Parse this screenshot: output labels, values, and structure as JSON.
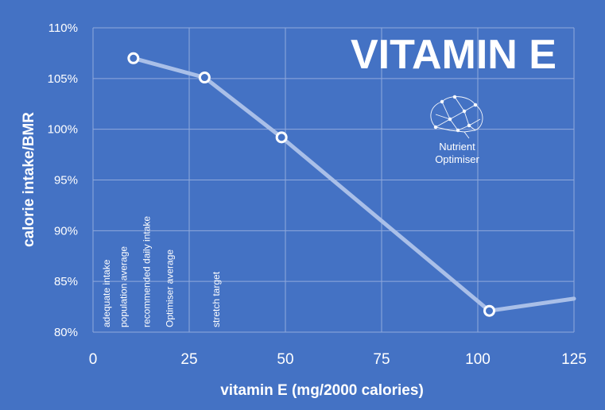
{
  "chart_data": {
    "type": "line",
    "title": "VITAMIN E",
    "xlabel": "vitamin E (mg/2000 calories)",
    "ylabel": "calorie intake/BMR",
    "xlim": [
      0,
      125
    ],
    "ylim": [
      80,
      110
    ],
    "x_ticks": [
      0,
      25,
      50,
      75,
      100,
      125
    ],
    "y_ticks": [
      80,
      85,
      90,
      95,
      100,
      105,
      110
    ],
    "y_tick_labels": [
      "80%",
      "85%",
      "90%",
      "95%",
      "100%",
      "105%",
      "110%"
    ],
    "grid": true,
    "series": [
      {
        "name": "calorie intake/BMR",
        "color": "#a9bfe8",
        "x": [
          10.5,
          29,
          49,
          103,
          125
        ],
        "y": [
          107,
          105.1,
          99.2,
          82.1,
          83.3
        ],
        "markers": [
          true,
          true,
          true,
          true,
          false
        ]
      }
    ],
    "reference_lines": [
      {
        "label": "adequate intake",
        "x": 4.3
      },
      {
        "label": "population average",
        "x": 8.8
      },
      {
        "label": "recommended daily intake",
        "x": 14.8
      },
      {
        "label": "Optimiser average",
        "x": 20.8
      },
      {
        "label": "stretch target",
        "x": 32.8
      }
    ]
  },
  "logo": {
    "line1": "Nutrient",
    "line2": "Optimiser",
    "icon": "brain-network-icon"
  }
}
